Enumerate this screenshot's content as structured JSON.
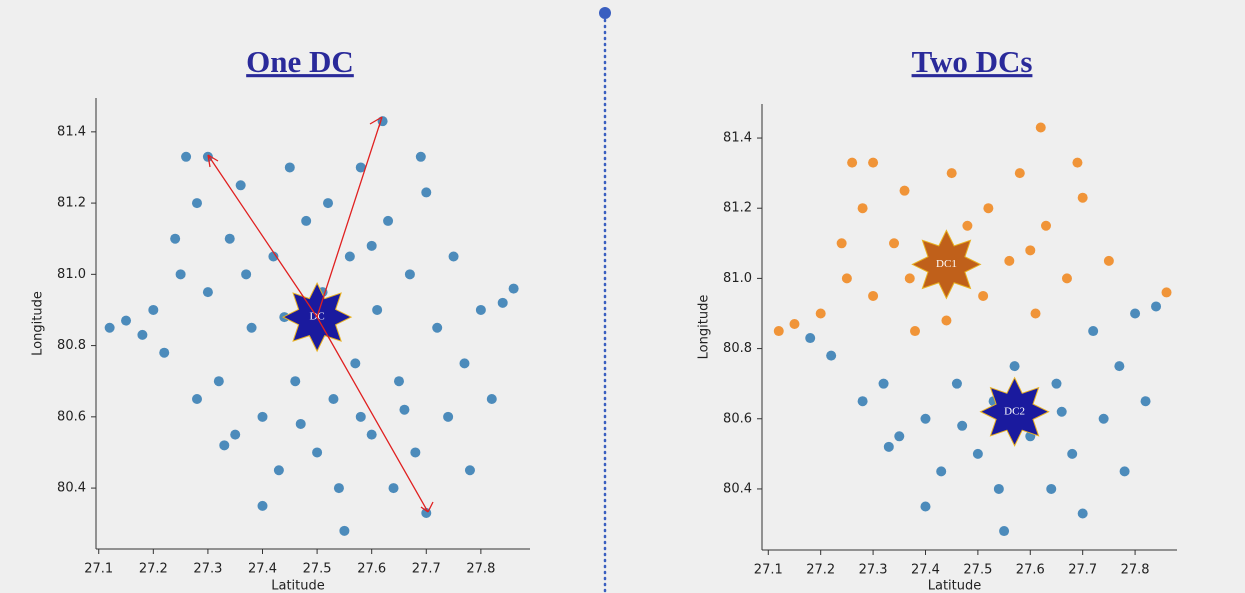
{
  "chart_data": [
    {
      "type": "scatter",
      "title": "One DC",
      "x_label": "Latitude",
      "y_label": "Longitude",
      "xlim": [
        27.095,
        27.89
      ],
      "ylim": [
        80.229,
        81.495
      ],
      "xticks": [
        27.1,
        27.2,
        27.3,
        27.4,
        27.5,
        27.6,
        27.7,
        27.8
      ],
      "yticks": [
        80.4,
        80.6,
        80.8,
        {
          "value": 81,
          "label": "81.0"
        },
        81.2,
        81.4
      ],
      "series": [
        {
          "color": "#3a7fb5",
          "x": [
            27.12,
            27.15,
            27.18,
            27.2,
            27.22,
            27.25,
            27.26,
            27.28,
            27.3,
            27.3,
            27.32,
            27.34,
            27.35,
            27.36,
            27.38,
            27.4,
            27.42,
            27.43,
            27.45,
            27.46,
            27.48,
            27.5,
            27.51,
            27.52,
            27.54,
            27.55,
            27.56,
            27.57,
            27.58,
            27.6,
            27.61,
            27.62,
            27.63,
            27.64,
            27.65,
            27.67,
            27.68,
            27.7,
            27.7,
            27.72,
            27.74,
            27.75,
            27.77,
            27.78,
            27.8,
            27.82,
            27.84,
            27.86,
            27.28,
            27.33,
            27.4,
            27.47,
            27.53,
            27.58,
            27.66,
            27.37,
            27.44,
            27.6,
            27.69,
            27.24
          ],
          "values": [
            80.85,
            80.87,
            80.83,
            80.9,
            80.78,
            81.0,
            81.33,
            81.2,
            81.33,
            80.95,
            80.7,
            81.1,
            80.55,
            81.25,
            80.85,
            80.6,
            81.05,
            80.45,
            81.3,
            80.7,
            81.15,
            80.5,
            80.95,
            81.2,
            80.4,
            80.28,
            81.05,
            80.75,
            81.3,
            80.55,
            80.9,
            81.43,
            81.15,
            80.4,
            80.7,
            81.0,
            80.5,
            81.23,
            80.33,
            80.85,
            80.6,
            81.05,
            80.75,
            80.45,
            80.9,
            80.65,
            80.92,
            80.96,
            80.65,
            80.52,
            80.35,
            80.58,
            80.65,
            80.6,
            80.62,
            81.0,
            80.88,
            81.08,
            81.33,
            81.1
          ]
        }
      ],
      "centers": [
        {
          "label": "DC",
          "x": 27.5,
          "y": 80.88,
          "color": "#1a1a9e"
        }
      ]
    },
    {
      "type": "scatter",
      "title": "Two DCs",
      "x_label": "Latitude",
      "y_label": "Longitude",
      "xlim": [
        27.088,
        27.88
      ],
      "ylim": [
        80.226,
        81.497
      ],
      "xticks": [
        27.1,
        27.2,
        27.3,
        27.4,
        27.5,
        27.6,
        27.7,
        27.8
      ],
      "yticks": [
        80.4,
        80.6,
        80.8,
        {
          "value": 81,
          "label": "81.0"
        },
        81.2,
        81.4
      ],
      "series": [
        {
          "color": "#f08a24",
          "x": [
            27.12,
            27.15,
            27.2,
            27.25,
            27.26,
            27.28,
            27.3,
            27.3,
            27.34,
            27.36,
            27.38,
            27.42,
            27.45,
            27.48,
            27.51,
            27.52,
            27.56,
            27.58,
            27.61,
            27.62,
            27.63,
            27.67,
            27.7,
            27.75,
            27.86,
            27.37,
            27.44,
            27.6,
            27.69,
            27.24
          ],
          "values": [
            80.85,
            80.87,
            80.9,
            81.0,
            81.33,
            81.2,
            81.33,
            80.95,
            81.1,
            81.25,
            80.85,
            81.05,
            81.3,
            81.15,
            80.95,
            81.2,
            81.05,
            81.3,
            80.9,
            81.43,
            81.15,
            81.0,
            81.23,
            81.05,
            80.96,
            81.0,
            80.88,
            81.08,
            81.33,
            81.1
          ]
        },
        {
          "color": "#3a7fb5",
          "x": [
            27.18,
            27.22,
            27.32,
            27.35,
            27.4,
            27.43,
            27.46,
            27.5,
            27.54,
            27.55,
            27.57,
            27.6,
            27.64,
            27.65,
            27.68,
            27.7,
            27.72,
            27.74,
            27.77,
            27.78,
            27.8,
            27.82,
            27.84,
            27.28,
            27.33,
            27.4,
            27.47,
            27.53,
            27.58,
            27.66
          ],
          "values": [
            80.83,
            80.78,
            80.7,
            80.55,
            80.6,
            80.45,
            80.7,
            80.5,
            80.4,
            80.28,
            80.75,
            80.55,
            80.4,
            80.7,
            80.5,
            80.33,
            80.85,
            80.6,
            80.75,
            80.45,
            80.9,
            80.65,
            80.92,
            80.65,
            80.52,
            80.35,
            80.58,
            80.65,
            80.6,
            80.62
          ]
        }
      ],
      "centers": [
        {
          "label": "DC1",
          "x": 27.44,
          "y": 81.04,
          "color": "#c0601a"
        },
        {
          "label": "DC2",
          "x": 27.57,
          "y": 80.62,
          "color": "#1a1a9e"
        }
      ]
    }
  ]
}
